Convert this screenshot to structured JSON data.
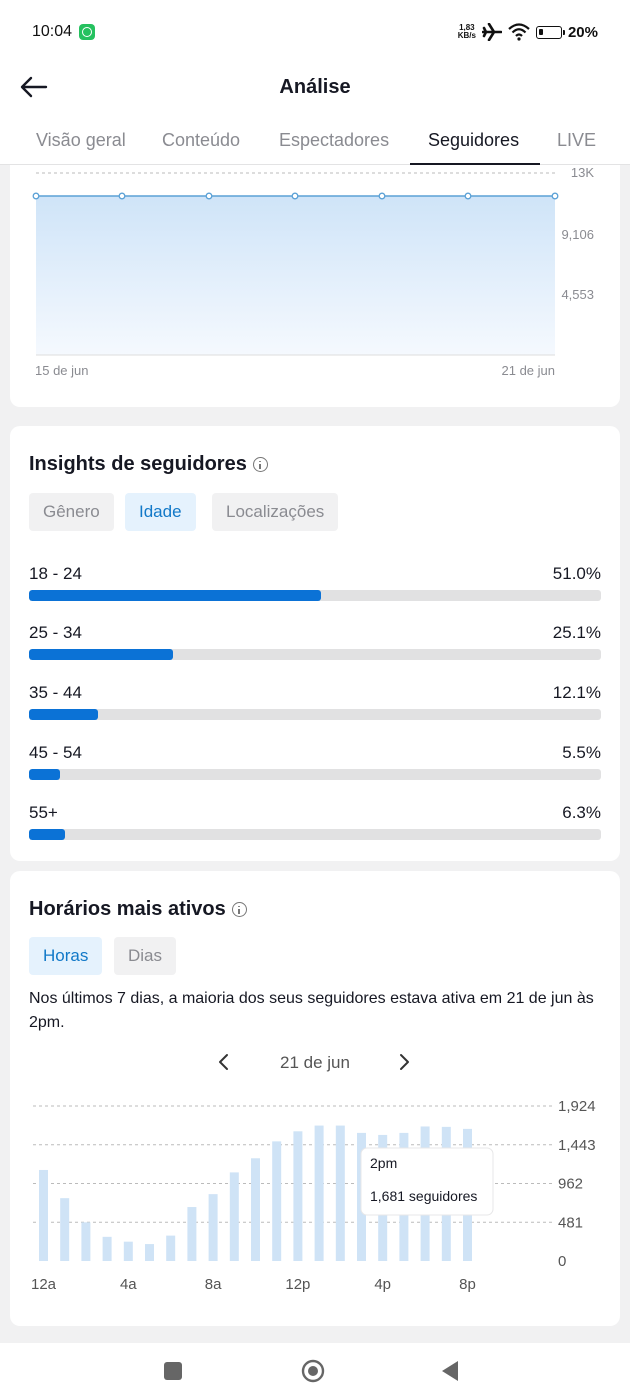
{
  "status_bar": {
    "time": "10:04",
    "net_speed_value": "1,83",
    "net_speed_unit": "KB/s",
    "battery": "20%",
    "icons": [
      "whatsapp-icon",
      "airplane-icon",
      "wifi-icon",
      "battery-icon"
    ]
  },
  "header": {
    "title": "Análise",
    "tabs": [
      {
        "label": "Visão geral"
      },
      {
        "label": "Conteúdo"
      },
      {
        "label": "Espectadores"
      },
      {
        "label": "Seguidores"
      },
      {
        "label": "LIVE"
      }
    ],
    "active_tab": "Seguidores"
  },
  "followers_chart": {
    "y_ticks": [
      "13K",
      "9,106",
      "4,553"
    ],
    "x_labels": [
      "15 de jun",
      "21 de jun"
    ],
    "line_color": "#5ba1d6"
  },
  "insights": {
    "title": "Insights de seguidores",
    "chips": [
      "Gênero",
      "Idade",
      "Localizações"
    ],
    "active_chip": "Idade",
    "bar_color": "#0b72d6",
    "ages": [
      {
        "label": "18 - 24",
        "value": "51.0%",
        "fraction": 0.51
      },
      {
        "label": "25 - 34",
        "value": "25.1%",
        "fraction": 0.251
      },
      {
        "label": "35 - 44",
        "value": "12.1%",
        "fraction": 0.121
      },
      {
        "label": "45 - 54",
        "value": "5.5%",
        "fraction": 0.055
      },
      {
        "label": "55+",
        "value": "6.3%",
        "fraction": 0.063
      }
    ]
  },
  "active_times": {
    "title": "Horários mais ativos",
    "chips": [
      "Horas",
      "Dias"
    ],
    "active_chip": "Horas",
    "summary": "Nos últimos 7 dias, a maioria dos seus seguidores estava ativa em 21 de jun às 2pm.",
    "date": "21 de jun",
    "tooltip": {
      "title": "2pm",
      "value": "1,681 seguidores"
    }
  },
  "chart_data": {
    "type": "bar",
    "categories": [
      "12a",
      "1a",
      "2a",
      "3a",
      "4a",
      "5a",
      "6a",
      "7a",
      "8a",
      "9a",
      "10a",
      "11a",
      "12p",
      "1p",
      "2p",
      "3p",
      "4p",
      "5p",
      "6p",
      "7p",
      "8p"
    ],
    "values": [
      1130,
      780,
      480,
      300,
      240,
      210,
      315,
      670,
      830,
      1100,
      1275,
      1485,
      1610,
      1681,
      1681,
      1590,
      1565,
      1590,
      1670,
      1665,
      1640
    ],
    "x_tick_labels": [
      "12a",
      "4a",
      "8a",
      "12p",
      "4p",
      "8p"
    ],
    "y_ticks": [
      "1,924",
      "1,443",
      "962",
      "481",
      "0"
    ],
    "ylim": [
      0,
      1924
    ],
    "bar_color": "#cfe3f6",
    "grid": true
  },
  "bottom_nav": {
    "icons": [
      "recents-square-icon",
      "home-circle-icon",
      "back-triangle-icon"
    ]
  }
}
